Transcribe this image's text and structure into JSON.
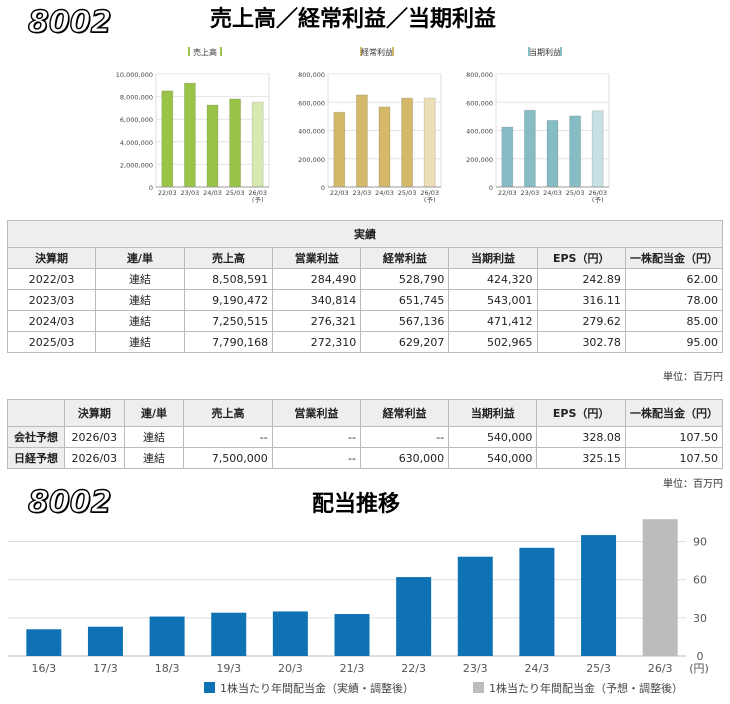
{
  "header": {
    "code_top": "8002",
    "title_top": "売上高／経常利益／当期利益",
    "code_bottom": "8002",
    "title_bottom": "配当推移"
  },
  "colors": {
    "sales": "#9ac447",
    "sales_forecast": "#d7e8b0",
    "ordinary": "#d4b96a",
    "ordinary_forecast": "#ecdfb6",
    "net": "#86bcc4",
    "net_forecast": "#c6e1e4",
    "dividend": "#0f72b4",
    "dividend_forecast": "#bcbcbc"
  },
  "chart_data": [
    {
      "type": "bar",
      "legend": "売上高",
      "categories": [
        "22/03",
        "23/03",
        "24/03",
        "25/03",
        "26/03"
      ],
      "forecast_label": "(予)",
      "values": [
        8508591,
        9190472,
        7250515,
        7790168,
        7500000
      ],
      "forecast_index": 4,
      "yticks": [
        "0",
        "2,000,000",
        "4,000,000",
        "6,000,000",
        "8,000,000",
        "10,000,000"
      ],
      "ylim": [
        0,
        10000000
      ]
    },
    {
      "type": "bar",
      "legend": "経常利益",
      "categories": [
        "22/03",
        "23/03",
        "24/03",
        "25/03",
        "26/03"
      ],
      "forecast_label": "(予)",
      "values": [
        528790,
        651745,
        567136,
        629207,
        630000
      ],
      "forecast_index": 4,
      "yticks": [
        "0",
        "200,000",
        "400,000",
        "600,000",
        "800,000"
      ],
      "ylim": [
        0,
        800000
      ]
    },
    {
      "type": "bar",
      "legend": "当期利益",
      "categories": [
        "22/03",
        "23/03",
        "24/03",
        "25/03",
        "26/03"
      ],
      "forecast_label": "(予)",
      "values": [
        424320,
        543001,
        471412,
        502965,
        540000
      ],
      "forecast_index": 4,
      "yticks": [
        "0",
        "200,000",
        "400,000",
        "600,000",
        "800,000"
      ],
      "ylim": [
        0,
        800000
      ]
    },
    {
      "type": "bar",
      "categories": [
        "16/3",
        "17/3",
        "18/3",
        "19/3",
        "20/3",
        "21/3",
        "22/3",
        "23/3",
        "24/3",
        "25/3",
        "26/3"
      ],
      "values": [
        21,
        23,
        31,
        34,
        35,
        33,
        62,
        78,
        85,
        95,
        107.5
      ],
      "forecast_index": 10,
      "yticks": [
        "0",
        "30",
        "60",
        "90"
      ],
      "ylim": [
        0,
        110
      ],
      "yunit": "(円)",
      "legend_actual": "1株当たり年間配当金（実績・調整後）",
      "legend_forecast": "1株当たり年間配当金（予想・調整後）"
    }
  ],
  "results_table": {
    "group_header": "実績",
    "headers": [
      "決算期",
      "連/単",
      "売上高",
      "営業利益",
      "経常利益",
      "当期利益",
      "EPS（円）",
      "一株配当金（円）"
    ],
    "rows": [
      [
        "2022/03",
        "連結",
        "8,508,591",
        "284,490",
        "528,790",
        "424,320",
        "242.89",
        "62.00"
      ],
      [
        "2023/03",
        "連結",
        "9,190,472",
        "340,814",
        "651,745",
        "543,001",
        "316.11",
        "78.00"
      ],
      [
        "2024/03",
        "連結",
        "7,250,515",
        "276,321",
        "567,136",
        "471,412",
        "279.62",
        "85.00"
      ],
      [
        "2025/03",
        "連結",
        "7,790,168",
        "272,310",
        "629,207",
        "502,965",
        "302.78",
        "95.00"
      ]
    ],
    "unit": "単位：百万円"
  },
  "forecast_table": {
    "headers": [
      "",
      "決算期",
      "連/単",
      "売上高",
      "営業利益",
      "経常利益",
      "当期利益",
      "EPS（円）",
      "一株配当金（円）"
    ],
    "rows": [
      [
        "会社予想",
        "2026/03",
        "連結",
        "--",
        "--",
        "--",
        "540,000",
        "328.08",
        "107.50"
      ],
      [
        "日経予想",
        "2026/03",
        "連結",
        "7,500,000",
        "--",
        "630,000",
        "540,000",
        "325.15",
        "107.50"
      ]
    ],
    "unit": "単位：百万円"
  }
}
